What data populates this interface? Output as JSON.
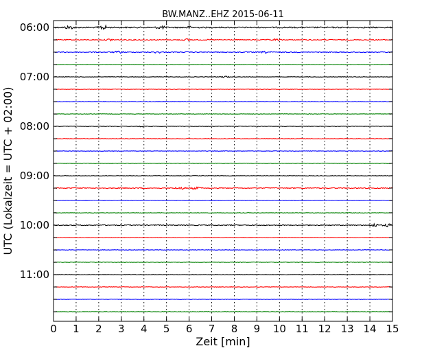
{
  "chart_data": {
    "type": "line",
    "title": "BW.MANZ..EHZ 2015-06-11",
    "xlabel": "Zeit  [min]",
    "ylabel": "UTC (Lokalzeit = UTC + 02:00)",
    "xlim": [
      0,
      15
    ],
    "x_ticks": [
      "0",
      "1",
      "2",
      "3",
      "4",
      "5",
      "6",
      "7",
      "8",
      "9",
      "10",
      "11",
      "12",
      "13",
      "14",
      "15"
    ],
    "hour_labels": [
      "06:00",
      "07:00",
      "08:00",
      "09:00",
      "10:00",
      "11:00"
    ],
    "traces_per_hour": 4,
    "trace_colors": [
      "#000000",
      "#ff0000",
      "#0000ff",
      "#008000"
    ],
    "grid": "vertical dotted at each minute",
    "series": [
      {
        "start": "06:00",
        "color": "#000000",
        "amplitude": "high",
        "events": [
          {
            "x": 0.7,
            "amp": 2.2
          },
          {
            "x": 2.2,
            "amp": 3.0
          },
          {
            "x": 4.75,
            "amp": 2.0
          },
          {
            "x": 6.0,
            "amp": 1.4
          }
        ]
      },
      {
        "start": "06:15",
        "color": "#ff0000",
        "amplitude": "medium",
        "events": [
          {
            "x": 2.5,
            "amp": 1.2
          },
          {
            "x": 5.9,
            "amp": 1.1
          },
          {
            "x": 9.8,
            "amp": 1.0
          }
        ]
      },
      {
        "start": "06:30",
        "color": "#0000ff",
        "amplitude": "medium",
        "events": [
          {
            "x": 2.9,
            "amp": 1.3
          },
          {
            "x": 4.6,
            "amp": 1.0
          },
          {
            "x": 9.4,
            "amp": 1.0
          }
        ]
      },
      {
        "start": "06:45",
        "color": "#008000",
        "amplitude": "low",
        "events": []
      },
      {
        "start": "07:00",
        "color": "#000000",
        "amplitude": "low",
        "events": [
          {
            "x": 7.6,
            "amp": 1.0
          }
        ]
      },
      {
        "start": "07:15",
        "color": "#ff0000",
        "amplitude": "low",
        "events": []
      },
      {
        "start": "07:30",
        "color": "#0000ff",
        "amplitude": "low",
        "events": []
      },
      {
        "start": "07:45",
        "color": "#008000",
        "amplitude": "low",
        "events": []
      },
      {
        "start": "08:00",
        "color": "#000000",
        "amplitude": "low",
        "events": [
          {
            "x": 3.9,
            "amp": 1.0
          }
        ]
      },
      {
        "start": "08:15",
        "color": "#ff0000",
        "amplitude": "low",
        "events": []
      },
      {
        "start": "08:30",
        "color": "#0000ff",
        "amplitude": "low",
        "events": []
      },
      {
        "start": "08:45",
        "color": "#008000",
        "amplitude": "low",
        "events": []
      },
      {
        "start": "09:00",
        "color": "#000000",
        "amplitude": "low",
        "events": []
      },
      {
        "start": "09:15",
        "color": "#ff0000",
        "amplitude": "medium",
        "events": [
          {
            "x": 5.6,
            "amp": 1.8
          },
          {
            "x": 6.3,
            "amp": 1.4
          }
        ]
      },
      {
        "start": "09:30",
        "color": "#0000ff",
        "amplitude": "low",
        "events": []
      },
      {
        "start": "09:45",
        "color": "#008000",
        "amplitude": "low",
        "events": []
      },
      {
        "start": "10:00",
        "color": "#000000",
        "amplitude": "medium",
        "events": [
          {
            "x": 14.2,
            "amp": 2.0
          },
          {
            "x": 14.8,
            "amp": 1.8
          }
        ]
      },
      {
        "start": "10:15",
        "color": "#ff0000",
        "amplitude": "low",
        "events": []
      },
      {
        "start": "10:30",
        "color": "#0000ff",
        "amplitude": "low",
        "events": []
      },
      {
        "start": "10:45",
        "color": "#008000",
        "amplitude": "low",
        "events": []
      },
      {
        "start": "11:00",
        "color": "#000000",
        "amplitude": "low",
        "events": []
      },
      {
        "start": "11:15",
        "color": "#ff0000",
        "amplitude": "low",
        "events": []
      },
      {
        "start": "11:30",
        "color": "#0000ff",
        "amplitude": "low",
        "events": []
      },
      {
        "start": "11:45",
        "color": "#008000",
        "amplitude": "low",
        "events": []
      }
    ]
  }
}
